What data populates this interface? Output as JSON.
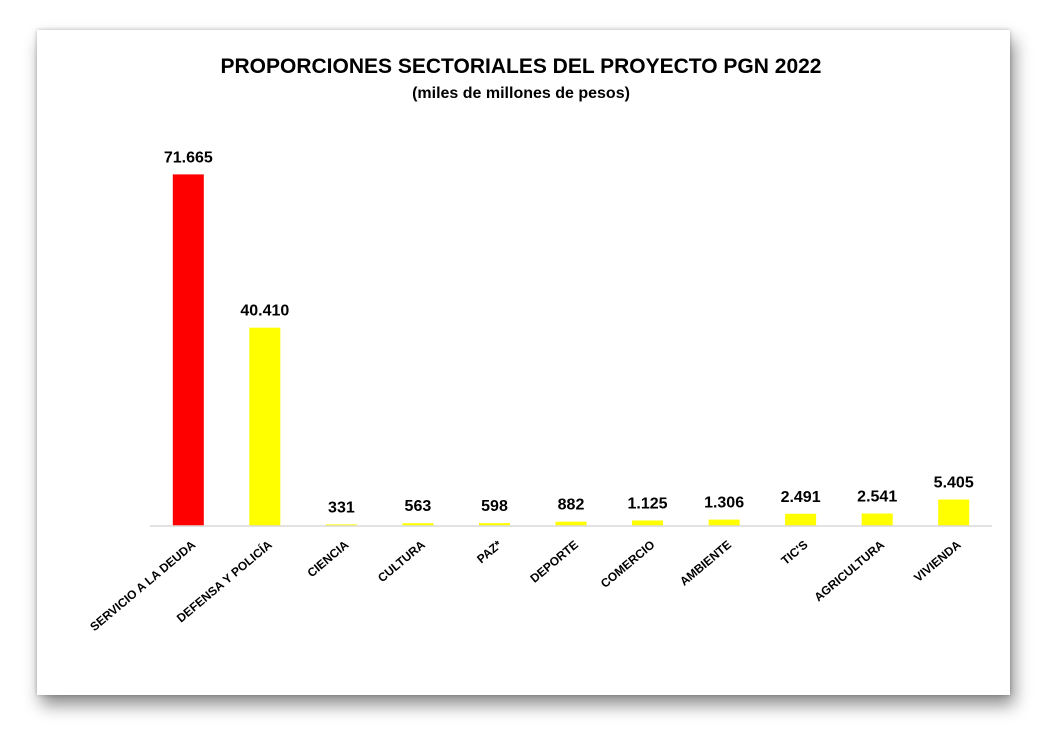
{
  "chart_data": {
    "type": "bar",
    "title": "PROPORCIONES SECTORIALES DEL PROYECTO PGN 2022",
    "subtitle": "(miles de millones de pesos)",
    "xlabel": "",
    "ylabel": "",
    "ylim": [
      0,
      75000
    ],
    "grid": false,
    "legend": "none",
    "categories": [
      "SERVICIO A LA DEUDA",
      "DEFENSA Y POLICÍA",
      "CIENCIA",
      "CULTURA",
      "PAZ*",
      "DEPORTE",
      "COMERCIO",
      "AMBIENTE",
      "TIC'S",
      "AGRICULTURA",
      "VIVIENDA"
    ],
    "values": [
      71665,
      40410,
      331,
      563,
      598,
      882,
      1125,
      1306,
      2491,
      2541,
      5405
    ],
    "value_labels": [
      "71.665",
      "40.410",
      "331",
      "563",
      "598",
      "882",
      "1.125",
      "1.306",
      "2.491",
      "2.541",
      "5.405"
    ],
    "colors": [
      "#ff0000",
      "#ffff00",
      "#ffff00",
      "#ffff00",
      "#ffff00",
      "#ffff00",
      "#ffff00",
      "#ffff00",
      "#ffff00",
      "#ffff00",
      "#ffff00"
    ]
  }
}
